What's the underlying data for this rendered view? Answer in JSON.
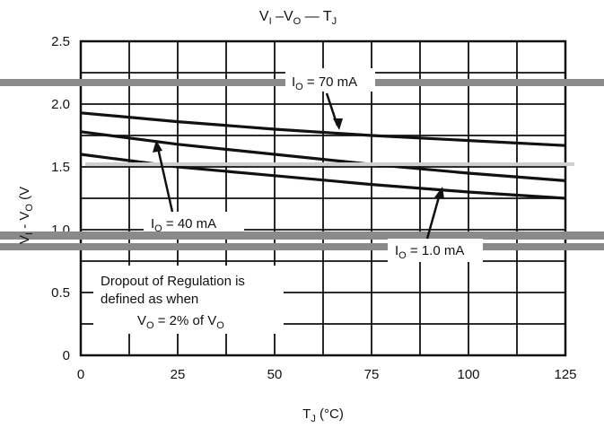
{
  "chart_data": {
    "type": "line",
    "title": {
      "a": "V",
      "a_sub": "I",
      "mid": " –V",
      "b_sub": "O",
      "dash": " — ",
      "c": "T",
      "c_sub": "J"
    },
    "xlabel": {
      "main": "T",
      "sub": "J",
      "rest": " (°C)"
    },
    "ylabel": {
      "a": "V",
      "a_sub": "I",
      "mid": " - V",
      "b_sub": "O",
      "rest": " (V"
    },
    "xlim": [
      0,
      125
    ],
    "ylim": [
      0,
      2.5
    ],
    "x_ticks": [
      0,
      25,
      50,
      75,
      100,
      125
    ],
    "y_ticks": [
      {
        "value": 0,
        "label": "0"
      },
      {
        "value": 0.5,
        "label": "0.5"
      },
      {
        "value": 1.0,
        "label": "1.0"
      },
      {
        "value": 1.5,
        "label": "1.5"
      },
      {
        "value": 2.0,
        "label": "2.0"
      },
      {
        "value": 2.5,
        "label": "2.5"
      }
    ],
    "grid": true,
    "series": [
      {
        "name": "IO = 70 mA",
        "x": [
          0,
          25,
          50,
          75,
          100,
          125
        ],
        "y": [
          1.93,
          1.86,
          1.8,
          1.75,
          1.71,
          1.67
        ]
      },
      {
        "name": "IO = 40 mA",
        "x": [
          0,
          25,
          50,
          75,
          100,
          125
        ],
        "y": [
          1.78,
          1.68,
          1.6,
          1.52,
          1.45,
          1.39
        ]
      },
      {
        "name": "IO = 1.0 mA",
        "x": [
          0,
          25,
          50,
          75,
          100,
          125
        ],
        "y": [
          1.6,
          1.5,
          1.43,
          1.36,
          1.3,
          1.25
        ]
      }
    ],
    "annotations": {
      "io70": {
        "main": "I",
        "sub": "O",
        "rest": " = 70 mA"
      },
      "io40": {
        "main": "I",
        "sub": "O",
        "rest": " = 40 mA"
      },
      "io1": {
        "main": "I",
        "sub": "O",
        "rest": " = 1.0 mA"
      },
      "note_line1": "Dropout of Regulation is",
      "note_line2": "defined as when",
      "note_line3": {
        "a": "V",
        "a_sub": "O",
        "mid": " = 2% of V",
        "b_sub": "O"
      }
    },
    "colors": {
      "curve": "#111111",
      "grid": "#111111",
      "scan_band": "#888888"
    }
  }
}
